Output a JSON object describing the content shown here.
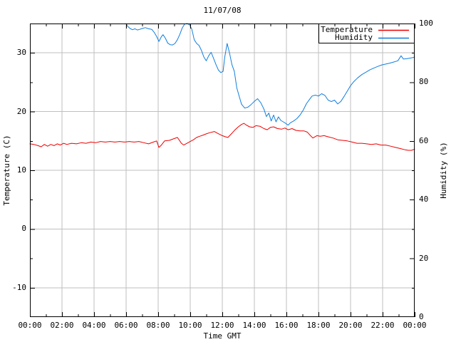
{
  "title": "11/07/08",
  "colors": {
    "temperature": "#ee0000",
    "humidity": "#0e7fe0",
    "grid": "#bfbfbf",
    "border": "#000000",
    "background": "#ffffff",
    "text": "#000000"
  },
  "axes": {
    "x": {
      "label": "Time GMT",
      "tick_labels": [
        "00:00",
        "02:00",
        "04:00",
        "06:00",
        "08:00",
        "10:00",
        "12:00",
        "14:00",
        "16:00",
        "18:00",
        "20:00",
        "22:00",
        "00:00"
      ],
      "range_hours": [
        0,
        24
      ],
      "major_step_hours": 2,
      "minor_step_hours": 1
    },
    "y_left": {
      "label": "Temperature (C)",
      "range": [
        -15,
        35
      ],
      "tick_values": [
        30,
        20,
        10,
        0,
        -10
      ],
      "tick_labels": [
        "30",
        "20",
        "10",
        "0",
        "-10"
      ],
      "minor_step": 5
    },
    "y_right": {
      "label": "Humidity (%)",
      "range": [
        0,
        100
      ],
      "tick_values": [
        100,
        80,
        60,
        40,
        20,
        0
      ],
      "tick_labels": [
        "100",
        "80",
        "60",
        "40",
        "20",
        "0"
      ],
      "minor_step": 10
    }
  },
  "legend": {
    "position": "top-right",
    "boxed": true,
    "entries": [
      {
        "label": "Temperature",
        "color_key": "temperature"
      },
      {
        "label": "Humidity",
        "color_key": "humidity"
      }
    ]
  },
  "chart_data": {
    "type": "line",
    "title": "11/07/08",
    "xlabel": "Time GMT",
    "grid": true,
    "x_range_hours": [
      0,
      24
    ],
    "series": [
      {
        "name": "Temperature",
        "axis": "left",
        "unit": "C",
        "color": "#ee0000",
        "ylim": [
          -15,
          35
        ],
        "points": [
          [
            0.0,
            14.5
          ],
          [
            0.25,
            14.4
          ],
          [
            0.5,
            14.2
          ],
          [
            0.7,
            14.0
          ],
          [
            0.9,
            14.4
          ],
          [
            1.1,
            14.1
          ],
          [
            1.3,
            14.4
          ],
          [
            1.5,
            14.2
          ],
          [
            1.7,
            14.5
          ],
          [
            1.9,
            14.3
          ],
          [
            2.1,
            14.6
          ],
          [
            2.3,
            14.4
          ],
          [
            2.6,
            14.6
          ],
          [
            2.9,
            14.5
          ],
          [
            3.2,
            14.7
          ],
          [
            3.5,
            14.6
          ],
          [
            3.8,
            14.8
          ],
          [
            4.1,
            14.7
          ],
          [
            4.4,
            14.9
          ],
          [
            4.7,
            14.8
          ],
          [
            5.0,
            14.9
          ],
          [
            5.3,
            14.8
          ],
          [
            5.6,
            14.9
          ],
          [
            5.9,
            14.8
          ],
          [
            6.2,
            14.9
          ],
          [
            6.5,
            14.8
          ],
          [
            6.8,
            14.9
          ],
          [
            7.1,
            14.7
          ],
          [
            7.4,
            14.5
          ],
          [
            7.7,
            14.8
          ],
          [
            7.9,
            15.0
          ],
          [
            8.05,
            13.9
          ],
          [
            8.2,
            14.3
          ],
          [
            8.4,
            15.0
          ],
          [
            8.7,
            15.1
          ],
          [
            9.0,
            15.4
          ],
          [
            9.2,
            15.6
          ],
          [
            9.45,
            14.6
          ],
          [
            9.6,
            14.3
          ],
          [
            9.8,
            14.6
          ],
          [
            10.0,
            14.9
          ],
          [
            10.2,
            15.2
          ],
          [
            10.4,
            15.6
          ],
          [
            10.6,
            15.8
          ],
          [
            10.8,
            16.0
          ],
          [
            11.0,
            16.2
          ],
          [
            11.2,
            16.4
          ],
          [
            11.5,
            16.6
          ],
          [
            11.7,
            16.3
          ],
          [
            12.0,
            15.9
          ],
          [
            12.2,
            15.7
          ],
          [
            12.35,
            15.6
          ],
          [
            12.6,
            16.3
          ],
          [
            12.8,
            16.9
          ],
          [
            13.0,
            17.4
          ],
          [
            13.2,
            17.8
          ],
          [
            13.35,
            18.0
          ],
          [
            13.5,
            17.7
          ],
          [
            13.7,
            17.4
          ],
          [
            13.9,
            17.3
          ],
          [
            14.1,
            17.6
          ],
          [
            14.35,
            17.5
          ],
          [
            14.6,
            17.1
          ],
          [
            14.8,
            16.9
          ],
          [
            15.0,
            17.3
          ],
          [
            15.2,
            17.4
          ],
          [
            15.45,
            17.1
          ],
          [
            15.7,
            17.0
          ],
          [
            15.9,
            17.2
          ],
          [
            16.1,
            16.9
          ],
          [
            16.35,
            17.1
          ],
          [
            16.6,
            16.8
          ],
          [
            16.85,
            16.7
          ],
          [
            17.1,
            16.7
          ],
          [
            17.3,
            16.5
          ],
          [
            17.5,
            15.9
          ],
          [
            17.65,
            15.5
          ],
          [
            17.9,
            15.9
          ],
          [
            18.1,
            15.8
          ],
          [
            18.35,
            15.9
          ],
          [
            18.6,
            15.7
          ],
          [
            18.9,
            15.5
          ],
          [
            19.2,
            15.2
          ],
          [
            19.5,
            15.1
          ],
          [
            19.8,
            15.0
          ],
          [
            20.1,
            14.8
          ],
          [
            20.4,
            14.6
          ],
          [
            20.7,
            14.6
          ],
          [
            21.0,
            14.5
          ],
          [
            21.3,
            14.4
          ],
          [
            21.6,
            14.5
          ],
          [
            21.9,
            14.3
          ],
          [
            22.2,
            14.3
          ],
          [
            22.5,
            14.1
          ],
          [
            22.8,
            13.9
          ],
          [
            23.1,
            13.7
          ],
          [
            23.4,
            13.5
          ],
          [
            23.6,
            13.4
          ],
          [
            23.8,
            13.4
          ],
          [
            24.0,
            13.6
          ]
        ]
      },
      {
        "name": "Humidity",
        "axis": "right",
        "unit": "%",
        "color": "#0e7fe0",
        "ylim": [
          0,
          100
        ],
        "points": [
          [
            6.0,
            100
          ],
          [
            6.1,
            99.0
          ],
          [
            6.25,
            98.3
          ],
          [
            6.4,
            97.9
          ],
          [
            6.55,
            98.2
          ],
          [
            6.7,
            97.8
          ],
          [
            6.85,
            98.0
          ],
          [
            7.0,
            98.3
          ],
          [
            7.2,
            98.6
          ],
          [
            7.4,
            98.2
          ],
          [
            7.6,
            98.0
          ],
          [
            7.75,
            97.0
          ],
          [
            7.9,
            95.6
          ],
          [
            8.05,
            93.9
          ],
          [
            8.2,
            95.5
          ],
          [
            8.3,
            96.2
          ],
          [
            8.45,
            95.0
          ],
          [
            8.6,
            93.3
          ],
          [
            8.75,
            92.8
          ],
          [
            8.9,
            92.7
          ],
          [
            9.05,
            93.2
          ],
          [
            9.2,
            94.5
          ],
          [
            9.35,
            96.3
          ],
          [
            9.5,
            98.5
          ],
          [
            9.65,
            99.8
          ],
          [
            9.8,
            100
          ],
          [
            9.95,
            99.6
          ],
          [
            10.1,
            98.0
          ],
          [
            10.25,
            94.5
          ],
          [
            10.4,
            93.2
          ],
          [
            10.55,
            92.5
          ],
          [
            10.7,
            90.8
          ],
          [
            10.85,
            88.6
          ],
          [
            11.0,
            87.3
          ],
          [
            11.15,
            89.0
          ],
          [
            11.3,
            90.2
          ],
          [
            11.45,
            88.2
          ],
          [
            11.6,
            86.1
          ],
          [
            11.75,
            84.2
          ],
          [
            11.9,
            83.3
          ],
          [
            12.05,
            83.7
          ],
          [
            12.15,
            88.5
          ],
          [
            12.3,
            93.2
          ],
          [
            12.45,
            90.0
          ],
          [
            12.6,
            86.0
          ],
          [
            12.75,
            83.7
          ],
          [
            12.9,
            78.1
          ],
          [
            13.05,
            75.3
          ],
          [
            13.2,
            72.5
          ],
          [
            13.4,
            71.2
          ],
          [
            13.6,
            71.5
          ],
          [
            13.8,
            72.4
          ],
          [
            14.0,
            73.5
          ],
          [
            14.2,
            74.4
          ],
          [
            14.4,
            73.0
          ],
          [
            14.6,
            70.8
          ],
          [
            14.75,
            68.3
          ],
          [
            14.9,
            69.5
          ],
          [
            15.05,
            66.8
          ],
          [
            15.2,
            68.8
          ],
          [
            15.35,
            66.5
          ],
          [
            15.5,
            68.2
          ],
          [
            15.65,
            67.0
          ],
          [
            15.8,
            66.5
          ],
          [
            15.95,
            66.0
          ],
          [
            16.1,
            65.4
          ],
          [
            16.25,
            66.2
          ],
          [
            16.45,
            66.8
          ],
          [
            16.65,
            67.6
          ],
          [
            16.85,
            68.8
          ],
          [
            17.05,
            70.5
          ],
          [
            17.25,
            72.7
          ],
          [
            17.45,
            74.2
          ],
          [
            17.6,
            75.3
          ],
          [
            17.8,
            75.6
          ],
          [
            18.0,
            75.3
          ],
          [
            18.2,
            76.1
          ],
          [
            18.4,
            75.5
          ],
          [
            18.6,
            73.9
          ],
          [
            18.8,
            73.4
          ],
          [
            19.0,
            73.9
          ],
          [
            19.2,
            72.6
          ],
          [
            19.4,
            73.5
          ],
          [
            19.6,
            75.2
          ],
          [
            19.8,
            77.0
          ],
          [
            20.0,
            78.8
          ],
          [
            20.2,
            80.2
          ],
          [
            20.45,
            81.5
          ],
          [
            20.7,
            82.6
          ],
          [
            20.95,
            83.4
          ],
          [
            21.2,
            84.2
          ],
          [
            21.45,
            84.8
          ],
          [
            21.7,
            85.4
          ],
          [
            21.95,
            85.9
          ],
          [
            22.2,
            86.2
          ],
          [
            22.45,
            86.5
          ],
          [
            22.7,
            86.9
          ],
          [
            22.95,
            87.3
          ],
          [
            23.15,
            89.0
          ],
          [
            23.3,
            87.9
          ],
          [
            23.5,
            88.0
          ],
          [
            23.7,
            88.2
          ],
          [
            23.9,
            88.4
          ],
          [
            24.0,
            88.6
          ]
        ]
      }
    ]
  }
}
